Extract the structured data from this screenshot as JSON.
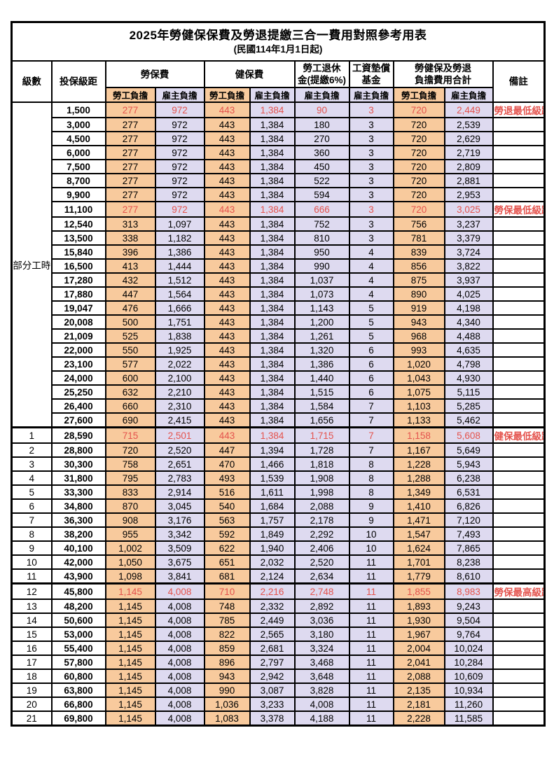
{
  "title": "2025年勞健保保費及勞退提繳三合一費用對照參考用表",
  "subtitle": "(民國114年1月1日起)",
  "colors": {
    "worker_bg": "#f8ca9d",
    "employer_bg": "#dedaf0",
    "highlight_red": "#e4534d",
    "border": "#000000"
  },
  "header": {
    "level": "級數",
    "bracket": "投保級距",
    "labor_insurance": "勞保費",
    "health_insurance": "健保費",
    "pension_line1": "勞工退休",
    "pension_line2": "金(提繳6%)",
    "wage_fund_line1": "工資墊償",
    "wage_fund_line2": "基金",
    "total_line1": "勞健保及勞退",
    "total_line2": "負擔費用合計",
    "remark": "備註",
    "worker": "勞工負擔",
    "employer": "雇主負擔"
  },
  "part_time_label": "部分工時",
  "part_time_rowspan": 23,
  "rows": [
    {
      "level": null,
      "bracket": "1,500",
      "values": [
        "277",
        "972",
        "443",
        "1,384",
        "90",
        "3",
        "720",
        "2,449"
      ],
      "remark": "勞退最低級距",
      "highlight": true,
      "thick": false
    },
    {
      "level": null,
      "bracket": "3,000",
      "values": [
        "277",
        "972",
        "443",
        "1,384",
        "180",
        "3",
        "720",
        "2,539"
      ],
      "remark": "",
      "highlight": false,
      "thick": false
    },
    {
      "level": null,
      "bracket": "4,500",
      "values": [
        "277",
        "972",
        "443",
        "1,384",
        "270",
        "3",
        "720",
        "2,629"
      ],
      "remark": "",
      "highlight": false,
      "thick": false
    },
    {
      "level": null,
      "bracket": "6,000",
      "values": [
        "277",
        "972",
        "443",
        "1,384",
        "360",
        "3",
        "720",
        "2,719"
      ],
      "remark": "",
      "highlight": false,
      "thick": false
    },
    {
      "level": null,
      "bracket": "7,500",
      "values": [
        "277",
        "972",
        "443",
        "1,384",
        "450",
        "3",
        "720",
        "2,809"
      ],
      "remark": "",
      "highlight": false,
      "thick": false
    },
    {
      "level": null,
      "bracket": "8,700",
      "values": [
        "277",
        "972",
        "443",
        "1,384",
        "522",
        "3",
        "720",
        "2,881"
      ],
      "remark": "",
      "highlight": false,
      "thick": false
    },
    {
      "level": null,
      "bracket": "9,900",
      "values": [
        "277",
        "972",
        "443",
        "1,384",
        "594",
        "3",
        "720",
        "2,953"
      ],
      "remark": "",
      "highlight": false,
      "thick": false
    },
    {
      "level": null,
      "bracket": "11,100",
      "values": [
        "277",
        "972",
        "443",
        "1,384",
        "666",
        "3",
        "720",
        "3,025"
      ],
      "remark": "勞保最低級距",
      "highlight": true,
      "thick": false
    },
    {
      "level": null,
      "bracket": "12,540",
      "values": [
        "313",
        "1,097",
        "443",
        "1,384",
        "752",
        "3",
        "756",
        "3,237"
      ],
      "remark": "",
      "highlight": false,
      "thick": false
    },
    {
      "level": null,
      "bracket": "13,500",
      "values": [
        "338",
        "1,182",
        "443",
        "1,384",
        "810",
        "3",
        "781",
        "3,379"
      ],
      "remark": "",
      "highlight": false,
      "thick": false
    },
    {
      "level": null,
      "bracket": "15,840",
      "values": [
        "396",
        "1,386",
        "443",
        "1,384",
        "950",
        "4",
        "839",
        "3,724"
      ],
      "remark": "",
      "highlight": false,
      "thick": false
    },
    {
      "level": null,
      "bracket": "16,500",
      "values": [
        "413",
        "1,444",
        "443",
        "1,384",
        "990",
        "4",
        "856",
        "3,822"
      ],
      "remark": "",
      "highlight": false,
      "thick": false
    },
    {
      "level": null,
      "bracket": "17,280",
      "values": [
        "432",
        "1,512",
        "443",
        "1,384",
        "1,037",
        "4",
        "875",
        "3,937"
      ],
      "remark": "",
      "highlight": false,
      "thick": false
    },
    {
      "level": null,
      "bracket": "17,880",
      "values": [
        "447",
        "1,564",
        "443",
        "1,384",
        "1,073",
        "4",
        "890",
        "4,025"
      ],
      "remark": "",
      "highlight": false,
      "thick": false
    },
    {
      "level": null,
      "bracket": "19,047",
      "values": [
        "476",
        "1,666",
        "443",
        "1,384",
        "1,143",
        "5",
        "919",
        "4,198"
      ],
      "remark": "",
      "highlight": false,
      "thick": false
    },
    {
      "level": null,
      "bracket": "20,008",
      "values": [
        "500",
        "1,751",
        "443",
        "1,384",
        "1,200",
        "5",
        "943",
        "4,340"
      ],
      "remark": "",
      "highlight": false,
      "thick": false
    },
    {
      "level": null,
      "bracket": "21,009",
      "values": [
        "525",
        "1,838",
        "443",
        "1,384",
        "1,261",
        "5",
        "968",
        "4,488"
      ],
      "remark": "",
      "highlight": false,
      "thick": false
    },
    {
      "level": null,
      "bracket": "22,000",
      "values": [
        "550",
        "1,925",
        "443",
        "1,384",
        "1,320",
        "6",
        "993",
        "4,635"
      ],
      "remark": "",
      "highlight": false,
      "thick": false
    },
    {
      "level": null,
      "bracket": "23,100",
      "values": [
        "577",
        "2,022",
        "443",
        "1,384",
        "1,386",
        "6",
        "1,020",
        "4,798"
      ],
      "remark": "",
      "highlight": false,
      "thick": false
    },
    {
      "level": null,
      "bracket": "24,000",
      "values": [
        "600",
        "2,100",
        "443",
        "1,384",
        "1,440",
        "6",
        "1,043",
        "4,930"
      ],
      "remark": "",
      "highlight": false,
      "thick": false
    },
    {
      "level": null,
      "bracket": "25,250",
      "values": [
        "632",
        "2,210",
        "443",
        "1,384",
        "1,515",
        "6",
        "1,075",
        "5,115"
      ],
      "remark": "",
      "highlight": false,
      "thick": false
    },
    {
      "level": null,
      "bracket": "26,400",
      "values": [
        "660",
        "2,310",
        "443",
        "1,384",
        "1,584",
        "7",
        "1,103",
        "5,285"
      ],
      "remark": "",
      "highlight": false,
      "thick": false
    },
    {
      "level": null,
      "bracket": "27,600",
      "values": [
        "690",
        "2,415",
        "443",
        "1,384",
        "1,656",
        "7",
        "1,133",
        "5,462"
      ],
      "remark": "",
      "highlight": false,
      "thick": false
    },
    {
      "level": "1",
      "bracket": "28,590",
      "values": [
        "715",
        "2,501",
        "443",
        "1,384",
        "1,715",
        "7",
        "1,158",
        "5,608"
      ],
      "remark": "健保最低級距",
      "highlight": true,
      "thick": true
    },
    {
      "level": "2",
      "bracket": "28,800",
      "values": [
        "720",
        "2,520",
        "447",
        "1,394",
        "1,728",
        "7",
        "1,167",
        "5,649"
      ],
      "remark": "",
      "highlight": false,
      "thick": false
    },
    {
      "level": "3",
      "bracket": "30,300",
      "values": [
        "758",
        "2,651",
        "470",
        "1,466",
        "1,818",
        "8",
        "1,228",
        "5,943"
      ],
      "remark": "",
      "highlight": false,
      "thick": false
    },
    {
      "level": "4",
      "bracket": "31,800",
      "values": [
        "795",
        "2,783",
        "493",
        "1,539",
        "1,908",
        "8",
        "1,288",
        "6,238"
      ],
      "remark": "",
      "highlight": false,
      "thick": false
    },
    {
      "level": "5",
      "bracket": "33,300",
      "values": [
        "833",
        "2,914",
        "516",
        "1,611",
        "1,998",
        "8",
        "1,349",
        "6,531"
      ],
      "remark": "",
      "highlight": false,
      "thick": false
    },
    {
      "level": "6",
      "bracket": "34,800",
      "values": [
        "870",
        "3,045",
        "540",
        "1,684",
        "2,088",
        "9",
        "1,410",
        "6,826"
      ],
      "remark": "",
      "highlight": false,
      "thick": false
    },
    {
      "level": "7",
      "bracket": "36,300",
      "values": [
        "908",
        "3,176",
        "563",
        "1,757",
        "2,178",
        "9",
        "1,471",
        "7,120"
      ],
      "remark": "",
      "highlight": false,
      "thick": false
    },
    {
      "level": "8",
      "bracket": "38,200",
      "values": [
        "955",
        "3,342",
        "592",
        "1,849",
        "2,292",
        "10",
        "1,547",
        "7,493"
      ],
      "remark": "",
      "highlight": false,
      "thick": false
    },
    {
      "level": "9",
      "bracket": "40,100",
      "values": [
        "1,002",
        "3,509",
        "622",
        "1,940",
        "2,406",
        "10",
        "1,624",
        "7,865"
      ],
      "remark": "",
      "highlight": false,
      "thick": false
    },
    {
      "level": "10",
      "bracket": "42,000",
      "values": [
        "1,050",
        "3,675",
        "651",
        "2,032",
        "2,520",
        "11",
        "1,701",
        "8,238"
      ],
      "remark": "",
      "highlight": false,
      "thick": false
    },
    {
      "level": "11",
      "bracket": "43,900",
      "values": [
        "1,098",
        "3,841",
        "681",
        "2,124",
        "2,634",
        "11",
        "1,779",
        "8,610"
      ],
      "remark": "",
      "highlight": false,
      "thick": false
    },
    {
      "level": "12",
      "bracket": "45,800",
      "values": [
        "1,145",
        "4,008",
        "710",
        "2,216",
        "2,748",
        "11",
        "1,855",
        "8,983"
      ],
      "remark": "勞保最高級距",
      "highlight": true,
      "thick": true
    },
    {
      "level": "13",
      "bracket": "48,200",
      "values": [
        "1,145",
        "4,008",
        "748",
        "2,332",
        "2,892",
        "11",
        "1,893",
        "9,243"
      ],
      "remark": "",
      "highlight": false,
      "thick": false
    },
    {
      "level": "14",
      "bracket": "50,600",
      "values": [
        "1,145",
        "4,008",
        "785",
        "2,449",
        "3,036",
        "11",
        "1,930",
        "9,504"
      ],
      "remark": "",
      "highlight": false,
      "thick": false
    },
    {
      "level": "15",
      "bracket": "53,000",
      "values": [
        "1,145",
        "4,008",
        "822",
        "2,565",
        "3,180",
        "11",
        "1,967",
        "9,764"
      ],
      "remark": "",
      "highlight": false,
      "thick": false
    },
    {
      "level": "16",
      "bracket": "55,400",
      "values": [
        "1,145",
        "4,008",
        "859",
        "2,681",
        "3,324",
        "11",
        "2,004",
        "10,024"
      ],
      "remark": "",
      "highlight": false,
      "thick": false
    },
    {
      "level": "17",
      "bracket": "57,800",
      "values": [
        "1,145",
        "4,008",
        "896",
        "2,797",
        "3,468",
        "11",
        "2,041",
        "10,284"
      ],
      "remark": "",
      "highlight": false,
      "thick": false
    },
    {
      "level": "18",
      "bracket": "60,800",
      "values": [
        "1,145",
        "4,008",
        "943",
        "2,942",
        "3,648",
        "11",
        "2,088",
        "10,609"
      ],
      "remark": "",
      "highlight": false,
      "thick": false
    },
    {
      "level": "19",
      "bracket": "63,800",
      "values": [
        "1,145",
        "4,008",
        "990",
        "3,087",
        "3,828",
        "11",
        "2,135",
        "10,934"
      ],
      "remark": "",
      "highlight": false,
      "thick": false
    },
    {
      "level": "20",
      "bracket": "66,800",
      "values": [
        "1,145",
        "4,008",
        "1,036",
        "3,233",
        "4,008",
        "11",
        "2,181",
        "11,260"
      ],
      "remark": "",
      "highlight": false,
      "thick": false
    },
    {
      "level": "21",
      "bracket": "69,800",
      "values": [
        "1,145",
        "4,008",
        "1,083",
        "3,378",
        "4,188",
        "11",
        "2,228",
        "11,585"
      ],
      "remark": "",
      "highlight": false,
      "thick": false
    }
  ]
}
